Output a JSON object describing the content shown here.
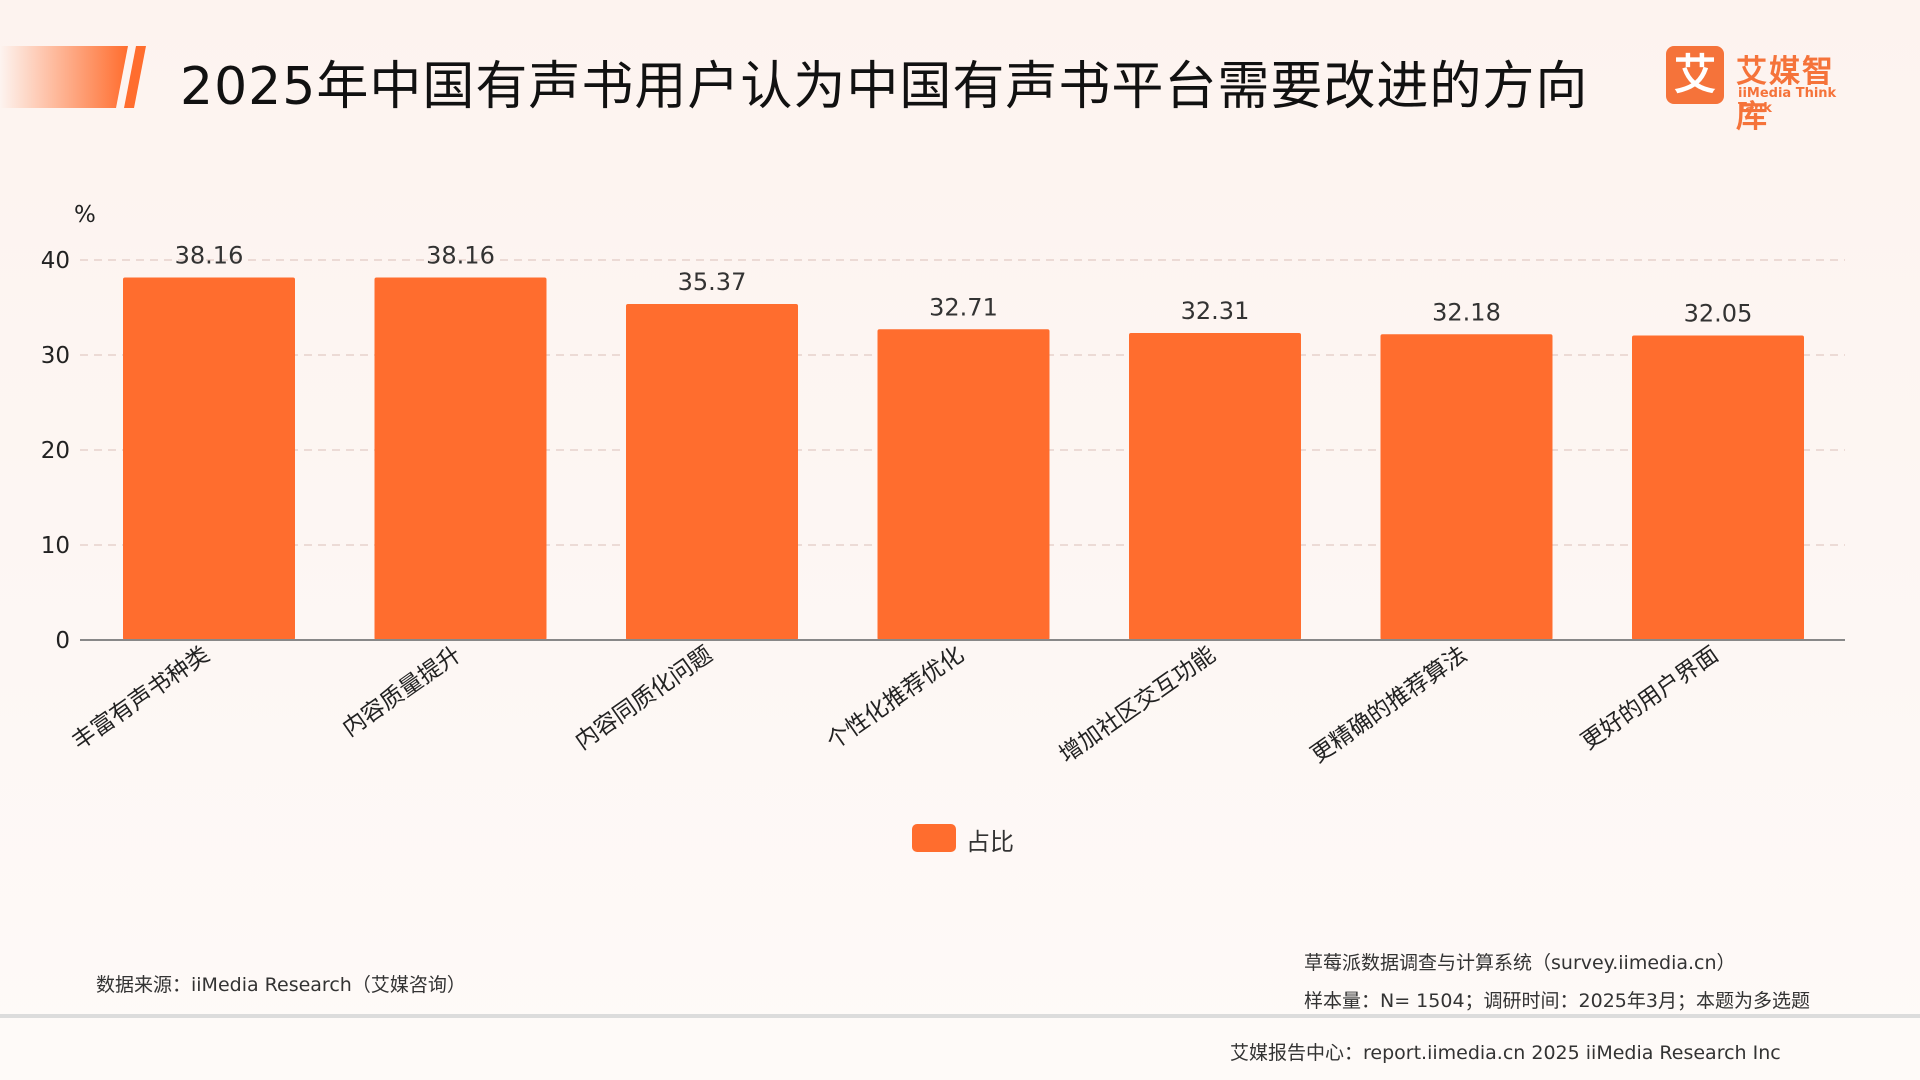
{
  "header": {
    "title": "2025年中国有声书用户认为中国有声书平台需要改进的方向",
    "logo_mark": "艾",
    "logo_cn": "艾媒智库",
    "logo_en": "iiMedia Think Tank"
  },
  "chart_data": {
    "type": "bar",
    "title": "2025年中国有声书用户认为中国有声书平台需要改进的方向",
    "ylabel": "%",
    "xlabel": "",
    "ylim": [
      0,
      40
    ],
    "yticks": [
      0,
      10,
      20,
      30,
      40
    ],
    "grid": true,
    "categories": [
      "丰富有声书种类",
      "内容质量提升",
      "内容同质化问题",
      "个性化推荐优化",
      "增加社区交互功能",
      "更精确的推荐算法",
      "更好的用户界面"
    ],
    "series": [
      {
        "name": "占比",
        "values": [
          38.16,
          38.16,
          35.37,
          32.71,
          32.31,
          32.18,
          32.05
        ],
        "color": "#ff6d2e"
      }
    ],
    "value_labels": [
      "38.16",
      "38.16",
      "35.37",
      "32.71",
      "32.31",
      "32.18",
      "32.05"
    ],
    "legend_position": "bottom-center"
  },
  "footer": {
    "source": "数据来源：iiMedia Research（艾媒咨询）",
    "system": "草莓派数据调查与计算系统（survey.iimedia.cn）",
    "sample": "样本量：N= 1504；调研时间：2025年3月；本题为多选题",
    "copyright": "艾媒报告中心：report.iimedia.cn   2025 iiMedia Research Inc"
  }
}
